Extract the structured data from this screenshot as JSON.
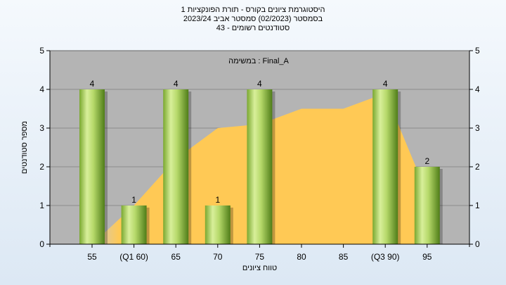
{
  "chart_data": {
    "type": "bar",
    "title": "היסטוגרמת ציונים בקורס - תורת הפונקציות 1",
    "subtitle": "בסמסטר  (02/2023)  סמסטר אביב 2023/24",
    "subtitle2": "סטודנטים רשומים - 43",
    "annotation": "במשימה : Final_A",
    "xlabel": "טווח ציונים",
    "ylabel": "מספר סטודנטים",
    "ylim": [
      0,
      5
    ],
    "y_ticks": [
      0,
      1,
      2,
      3,
      4,
      5
    ],
    "categories": [
      "55",
      "(Q1 60)",
      "65",
      "70",
      "75",
      "80",
      "85",
      "(Q3 90)",
      "95"
    ],
    "values": [
      4,
      1,
      4,
      1,
      4,
      0,
      0,
      4,
      2
    ],
    "value_labels": [
      "4",
      "1",
      "4",
      "1",
      "4",
      "",
      "",
      "4",
      "2"
    ],
    "area_curve": [
      0.0,
      1.0,
      2.2,
      3.0,
      3.1,
      3.5,
      3.5,
      3.9,
      1.3
    ],
    "colors": {
      "plot_bg": "#b4b4b4",
      "bar_light": "#d8ef9a",
      "bar_dark": "#5a8a1c",
      "area": "#ffc955",
      "area_start": "#c8c8c8"
    },
    "grid": true,
    "legend": "none"
  }
}
